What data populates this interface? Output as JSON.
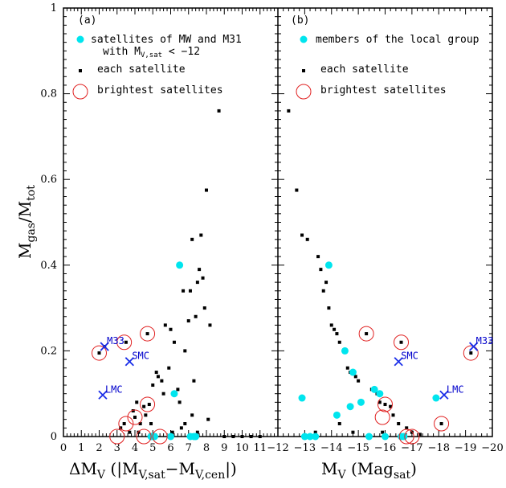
{
  "chart_data": [
    {
      "panel": "left",
      "type": "scatter",
      "panel_label": "(a)",
      "xlabel_main": "ΔM",
      "xlabel_sub": "V",
      "xlabel_rest": " (|M",
      "xlabel_sub2": "V,sat",
      "xlabel_mid": "−M",
      "xlabel_sub3": "V,cen",
      "xlabel_end": "|)",
      "ylabel_main": "M",
      "ylabel_sub1": "gas",
      "ylabel_slash": "/M",
      "ylabel_sub2": "tot",
      "xlim": [
        0,
        12
      ],
      "ylim": [
        0,
        1
      ],
      "x_ticks": [
        "0",
        "1",
        "2",
        "3",
        "4",
        "5",
        "6",
        "7",
        "8",
        "9",
        "10",
        "11"
      ],
      "y_ticks": [
        "0",
        "0.2",
        "0.4",
        "0.6",
        "0.8",
        "1"
      ],
      "legend": {
        "cyan": {
          "line1": "satellites of MW and M31",
          "line2_a": "with M",
          "line2_sub": "V,sat",
          "line2_b": " < −12"
        },
        "black": "each satellite",
        "red": "brightest satellites"
      },
      "series": {
        "each_satellite": [
          [
            2,
            0.195
          ],
          [
            2.3,
            0.21
          ],
          [
            3.2,
            0.02
          ],
          [
            3.4,
            0.03
          ],
          [
            3.5,
            0.22
          ],
          [
            3.7,
            0.01
          ],
          [
            3.9,
            0.06
          ],
          [
            4,
            0.045
          ],
          [
            4.1,
            0.08
          ],
          [
            4.2,
            0.01
          ],
          [
            4.3,
            0.03
          ],
          [
            4.5,
            0.07
          ],
          [
            4.6,
            0.05
          ],
          [
            4.7,
            0.24
          ],
          [
            4.8,
            0.075
          ],
          [
            4.9,
            0.03
          ],
          [
            5,
            0.12
          ],
          [
            5.2,
            0.15
          ],
          [
            5.3,
            0.14
          ],
          [
            5.5,
            0.13
          ],
          [
            5.6,
            0.1
          ],
          [
            5.7,
            0.26
          ],
          [
            5.9,
            0.16
          ],
          [
            6,
            0.25
          ],
          [
            6.1,
            0.01
          ],
          [
            6.2,
            0.22
          ],
          [
            6.4,
            0.11
          ],
          [
            6.5,
            0.08
          ],
          [
            6.6,
            0.02
          ],
          [
            6.7,
            0.34
          ],
          [
            6.8,
            0.2
          ],
          [
            7,
            0.27
          ],
          [
            7.1,
            0.34
          ],
          [
            7.2,
            0.46
          ],
          [
            7.3,
            0.13
          ],
          [
            7.4,
            0.28
          ],
          [
            7.5,
            0.36
          ],
          [
            7.6,
            0.39
          ],
          [
            7.7,
            0.47
          ],
          [
            7.8,
            0.37
          ],
          [
            7.9,
            0.3
          ],
          [
            8,
            0.575
          ],
          [
            8.1,
            0.04
          ],
          [
            8.2,
            0.26
          ],
          [
            8.7,
            0.76
          ],
          [
            9,
            0
          ],
          [
            9.5,
            0
          ],
          [
            10,
            0
          ],
          [
            10.5,
            0
          ],
          [
            11,
            0
          ],
          [
            7.5,
            0.01
          ],
          [
            7.2,
            0.05
          ],
          [
            6.8,
            0.03
          ]
        ],
        "cyan_members": [
          [
            4.9,
            0
          ],
          [
            5.0,
            0
          ],
          [
            5.1,
            0
          ],
          [
            6.0,
            0
          ],
          [
            6.2,
            0.1
          ],
          [
            6.5,
            0.4
          ],
          [
            7.1,
            0
          ],
          [
            7.3,
            0
          ],
          [
            7.4,
            0
          ]
        ],
        "brightest": [
          [
            2,
            0.195
          ],
          [
            3.4,
            0.22
          ],
          [
            4.7,
            0.24
          ],
          [
            4.0,
            0.045
          ],
          [
            3.5,
            0.03
          ],
          [
            4.7,
            0.075
          ],
          [
            3.0,
            0
          ],
          [
            4.5,
            0
          ],
          [
            5.4,
            0
          ]
        ]
      },
      "annotations": [
        {
          "label": "M33",
          "x": 2.3,
          "y": 0.21
        },
        {
          "label": "SMC",
          "x": 3.7,
          "y": 0.175
        },
        {
          "label": "LMC",
          "x": 2.2,
          "y": 0.097
        }
      ]
    },
    {
      "panel": "right",
      "type": "scatter",
      "panel_label": "(b)",
      "xlabel_main": "M",
      "xlabel_sub": "V",
      "xlabel_rest": " (Mag",
      "xlabel_sub2": "sat",
      "xlabel_end": ")",
      "xlim": [
        -12,
        -20
      ],
      "ylim": [
        0,
        1
      ],
      "x_ticks": [
        "−12",
        "−13",
        "−14",
        "−15",
        "−16",
        "−17",
        "−18",
        "−19",
        "−20"
      ],
      "legend": {
        "cyan": "members of the local group",
        "black": "each satellite",
        "red": "brightest satellites"
      },
      "series": {
        "each_satellite": [
          [
            -12.4,
            0.76
          ],
          [
            -12.7,
            0.575
          ],
          [
            -12.9,
            0.47
          ],
          [
            -13.1,
            0.46
          ],
          [
            -13.5,
            0.42
          ],
          [
            -13.6,
            0.39
          ],
          [
            -13.7,
            0.34
          ],
          [
            -13.8,
            0.36
          ],
          [
            -13.9,
            0.3
          ],
          [
            -14.0,
            0.26
          ],
          [
            -14.1,
            0.25
          ],
          [
            -14.2,
            0.24
          ],
          [
            -14.3,
            0.22
          ],
          [
            -14.5,
            0.2
          ],
          [
            -14.6,
            0.16
          ],
          [
            -14.7,
            0.15
          ],
          [
            -14.9,
            0.14
          ],
          [
            -15.0,
            0.13
          ],
          [
            -15.3,
            0.24
          ],
          [
            -15.5,
            0.11
          ],
          [
            -15.7,
            0.1
          ],
          [
            -15.8,
            0.08
          ],
          [
            -16.0,
            0.075
          ],
          [
            -16.2,
            0.07
          ],
          [
            -16.3,
            0.05
          ],
          [
            -16.5,
            0.03
          ],
          [
            -16.6,
            0.22
          ],
          [
            -16.8,
            0.02
          ],
          [
            -17.0,
            0.01
          ],
          [
            -17.3,
            0.005
          ],
          [
            -18.1,
            0.03
          ],
          [
            -19.2,
            0.195
          ],
          [
            -13.4,
            0.01
          ],
          [
            -14.3,
            0.03
          ],
          [
            -14.8,
            0.01
          ],
          [
            -15.9,
            0.01
          ]
        ],
        "cyan_members": [
          [
            -12.9,
            0.09
          ],
          [
            -13.0,
            0
          ],
          [
            -13.2,
            0
          ],
          [
            -13.4,
            0
          ],
          [
            -13.9,
            0.4
          ],
          [
            -14.2,
            0.05
          ],
          [
            -14.5,
            0.2
          ],
          [
            -14.7,
            0.07
          ],
          [
            -14.8,
            0.15
          ],
          [
            -15.1,
            0.08
          ],
          [
            -15.4,
            0
          ],
          [
            -15.6,
            0.11
          ],
          [
            -15.8,
            0.1
          ],
          [
            -16.0,
            0
          ],
          [
            -16.6,
            0
          ],
          [
            -16.7,
            0
          ],
          [
            -17.9,
            0.09
          ]
        ],
        "brightest": [
          [
            -15.3,
            0.24
          ],
          [
            -16.6,
            0.22
          ],
          [
            -16.0,
            0.075
          ],
          [
            -15.9,
            0.045
          ],
          [
            -18.1,
            0.03
          ],
          [
            -16.8,
            0
          ],
          [
            -17.0,
            0
          ],
          [
            -19.2,
            0.195
          ]
        ]
      },
      "annotations": [
        {
          "label": "M33",
          "x": -19.3,
          "y": 0.21
        },
        {
          "label": "SMC",
          "x": -16.5,
          "y": 0.175
        },
        {
          "label": "LMC",
          "x": -18.2,
          "y": 0.097
        }
      ]
    }
  ],
  "colors": {
    "cyan": "#00e5ee",
    "red": "#e02020",
    "blue": "#1a2ee8",
    "black": "#000000"
  }
}
